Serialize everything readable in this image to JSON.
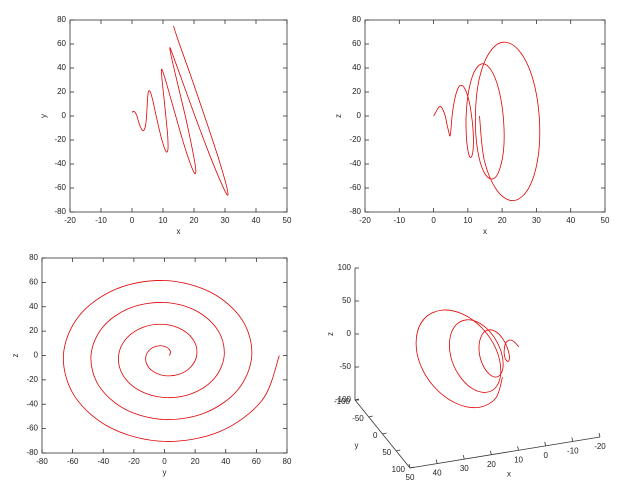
{
  "chart_data": [
    {
      "type": "line",
      "xlabel": "x",
      "ylabel": "y",
      "color": "#e00000",
      "xlim": [
        -20,
        50
      ],
      "xticks": [
        -20,
        -10,
        0,
        10,
        20,
        30,
        40,
        50
      ],
      "ylim": [
        -80,
        80
      ],
      "yticks": [
        -80,
        -60,
        -40,
        -20,
        0,
        20,
        40,
        60,
        80
      ],
      "x": [
        0,
        0.5,
        1.0,
        1.6,
        2.1,
        2.7,
        3.4,
        3.9,
        4.4,
        4.7,
        4.9,
        5.1,
        5.4,
        6.0,
        6.8,
        7.8,
        9.0,
        10.2,
        11.1,
        11.6,
        11.5,
        10.9,
        10.2,
        9.6,
        9.5,
        10.2,
        11.8,
        14.1,
        16.6,
        18.9,
        20.3,
        20.5,
        19.3,
        17.2,
        14.7,
        12.8,
        12.2,
        13.2,
        16.1,
        20.3,
        24.9,
        28.8,
        30.8,
        30.5,
        27.8,
        23.4,
        18.6,
        14.8,
        13.4
      ],
      "y": [
        3,
        3.9,
        3.0,
        0,
        -4.5,
        -9.1,
        -12,
        -11.7,
        -7.5,
        0,
        9,
        16.9,
        21,
        19.5,
        12,
        0,
        -13.5,
        -24.7,
        -30,
        -27.3,
        -16.5,
        0,
        18,
        32.5,
        39,
        35.1,
        21,
        0,
        -22.5,
        -40.3,
        -48,
        -42.9,
        -25.5,
        0,
        27,
        48.1,
        57,
        50.7,
        30,
        0,
        -31.5,
        -55.9,
        -66,
        -58.5,
        -34.5,
        0,
        36,
        63.7,
        75
      ]
    },
    {
      "type": "line",
      "xlabel": "x",
      "ylabel": "z",
      "color": "#e00000",
      "xlim": [
        -20,
        50
      ],
      "xticks": [
        -20,
        -10,
        0,
        10,
        20,
        30,
        40,
        50
      ],
      "ylim": [
        -80,
        80
      ],
      "yticks": [
        -80,
        -60,
        -40,
        -20,
        0,
        20,
        40,
        60,
        80
      ],
      "x": [
        0,
        0.5,
        1.0,
        1.6,
        2.1,
        2.7,
        3.4,
        3.9,
        4.4,
        4.7,
        4.9,
        5.1,
        5.4,
        6.0,
        6.8,
        7.8,
        9.0,
        10.2,
        11.1,
        11.6,
        11.5,
        10.9,
        10.2,
        9.6,
        9.5,
        10.2,
        11.8,
        14.1,
        16.6,
        18.9,
        20.3,
        20.5,
        19.3,
        17.2,
        14.7,
        12.8,
        12.2,
        13.2,
        16.1,
        20.3,
        24.9,
        28.8,
        30.8,
        30.5,
        27.8,
        23.4,
        18.6,
        14.8,
        13.4
      ],
      "y": [
        0,
        2.3,
        5.2,
        7.5,
        7.8,
        5.3,
        0,
        -6.8,
        -13,
        -16.5,
        -15.6,
        -9.8,
        0,
        11.3,
        20.8,
        25.5,
        23.4,
        14.3,
        0,
        -15.8,
        -28.6,
        -34.5,
        -31.2,
        -18.8,
        0,
        20.3,
        36.4,
        43.5,
        39,
        23.3,
        0,
        -24.8,
        -44.2,
        -52.5,
        -46.8,
        -27.8,
        0,
        29.3,
        52,
        61.5,
        54.6,
        32.3,
        0,
        -33.8,
        -59.8,
        -70.5,
        -62.4,
        -36.8,
        0
      ]
    },
    {
      "type": "line",
      "xlabel": "y",
      "ylabel": "z",
      "color": "#e00000",
      "xlim": [
        -80,
        80
      ],
      "xticks": [
        -80,
        -60,
        -40,
        -20,
        0,
        20,
        40,
        60,
        80
      ],
      "ylim": [
        -80,
        80
      ],
      "yticks": [
        -80,
        -60,
        -40,
        -20,
        0,
        20,
        40,
        60,
        80
      ],
      "x": [
        3,
        3.9,
        3.0,
        0,
        -4.5,
        -9.1,
        -12,
        -11.7,
        -7.5,
        0,
        9,
        16.9,
        21,
        19.5,
        12,
        0,
        -13.5,
        -24.7,
        -30,
        -27.3,
        -16.5,
        0,
        18,
        32.5,
        39,
        35.1,
        21,
        0,
        -22.5,
        -40.3,
        -48,
        -42.9,
        -25.5,
        0,
        27,
        48.1,
        57,
        50.7,
        30,
        0,
        -31.5,
        -55.9,
        -66,
        -58.5,
        -34.5,
        0,
        36,
        63.7,
        75
      ],
      "y": [
        0,
        2.3,
        5.2,
        7.5,
        7.8,
        5.3,
        0,
        -6.8,
        -13,
        -16.5,
        -15.6,
        -9.8,
        0,
        11.3,
        20.8,
        25.5,
        23.4,
        14.3,
        0,
        -15.8,
        -28.6,
        -34.5,
        -31.2,
        -18.8,
        0,
        20.3,
        36.4,
        43.5,
        39,
        23.3,
        0,
        -24.8,
        -44.2,
        -52.5,
        -46.8,
        -27.8,
        0,
        29.3,
        52,
        61.5,
        54.6,
        32.3,
        0,
        -33.8,
        -59.8,
        -70.5,
        -62.4,
        -36.8,
        0
      ]
    },
    {
      "type": "line3d",
      "xlabel": "x",
      "ylabel": "y",
      "zlabel": "z",
      "color": "#e00000",
      "xlim": [
        -20,
        50
      ],
      "xticks": [
        50,
        40,
        30,
        20,
        10,
        0,
        -10,
        -20
      ],
      "ylim": [
        -100,
        100
      ],
      "yticks": [
        -100,
        -50,
        0,
        50,
        100
      ],
      "zlim": [
        -100,
        100
      ],
      "zticks": [
        -100,
        -50,
        0,
        50,
        100
      ],
      "x": [
        0,
        0.5,
        1.0,
        1.6,
        2.1,
        2.7,
        3.4,
        3.9,
        4.4,
        4.7,
        4.9,
        5.1,
        5.4,
        6.0,
        6.8,
        7.8,
        9.0,
        10.2,
        11.1,
        11.6,
        11.5,
        10.9,
        10.2,
        9.6,
        9.5,
        10.2,
        11.8,
        14.1,
        16.6,
        18.9,
        20.3,
        20.5,
        19.3,
        17.2,
        14.7,
        12.8,
        12.2,
        13.2,
        16.1,
        20.3,
        24.9,
        28.8,
        30.8,
        30.5,
        27.8,
        23.4,
        18.6,
        14.8,
        13.4
      ],
      "y": [
        3,
        3.9,
        3.0,
        0,
        -4.5,
        -9.1,
        -12,
        -11.7,
        -7.5,
        0,
        9,
        16.9,
        21,
        19.5,
        12,
        0,
        -13.5,
        -24.7,
        -30,
        -27.3,
        -16.5,
        0,
        18,
        32.5,
        39,
        35.1,
        21,
        0,
        -22.5,
        -40.3,
        -48,
        -42.9,
        -25.5,
        0,
        27,
        48.1,
        57,
        50.7,
        30,
        0,
        -31.5,
        -55.9,
        -66,
        -58.5,
        -34.5,
        0,
        36,
        63.7,
        75
      ],
      "z": [
        0,
        2.3,
        5.2,
        7.5,
        7.8,
        5.3,
        0,
        -6.8,
        -13,
        -16.5,
        -15.6,
        -9.8,
        0,
        11.3,
        20.8,
        25.5,
        23.4,
        14.3,
        0,
        -15.8,
        -28.6,
        -34.5,
        -31.2,
        -18.8,
        0,
        20.3,
        36.4,
        43.5,
        39,
        23.3,
        0,
        -24.8,
        -44.2,
        -52.5,
        -46.8,
        -27.8,
        0,
        29.3,
        52,
        61.5,
        54.6,
        32.3,
        0,
        -33.8,
        -59.8,
        -70.5,
        -62.4,
        -36.8,
        0
      ]
    }
  ]
}
